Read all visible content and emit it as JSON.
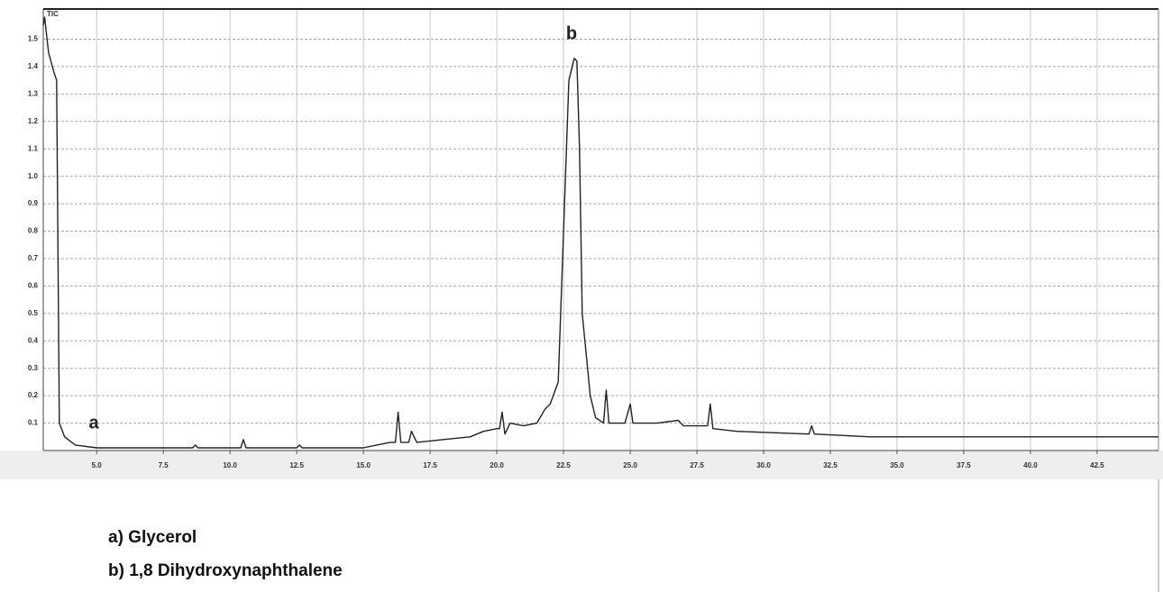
{
  "chart_data": {
    "type": "line",
    "y_label": "TIC",
    "color": "#222222",
    "grid": true,
    "xlim": [
      3.0,
      44.8
    ],
    "ylim": [
      0,
      1.61
    ],
    "xticks": [
      {
        "value": 5,
        "label": "5.0"
      },
      7.5,
      {
        "value": 10,
        "label": "10.0"
      },
      12.5,
      {
        "value": 15,
        "label": "15.0"
      },
      17.5,
      {
        "value": 20,
        "label": "20.0"
      },
      22.5,
      {
        "value": 25,
        "label": "25.0"
      },
      27.5,
      {
        "value": 30,
        "label": "30.0"
      },
      32.5,
      {
        "value": 35,
        "label": "35.0"
      },
      37.5,
      {
        "value": 40,
        "label": "40.0"
      },
      42.5
    ],
    "yticks": [
      0.1,
      0.2,
      0.3,
      0.4,
      0.5,
      0.6,
      0.7,
      0.8,
      0.9,
      {
        "value": 1,
        "label": "1.0"
      },
      1.1,
      1.2,
      1.3,
      1.4,
      1.5
    ],
    "x": [
      3.0,
      3.05,
      3.2,
      3.4,
      3.5,
      3.6,
      3.8,
      4.2,
      5.0,
      8.6,
      8.7,
      8.8,
      10.4,
      10.5,
      10.6,
      12.5,
      12.6,
      12.7,
      15.0,
      15.5,
      16.0,
      16.2,
      16.3,
      16.4,
      16.7,
      16.8,
      17.0,
      18.0,
      19.0,
      19.5,
      20.0,
      20.1,
      20.2,
      20.3,
      20.5,
      21.0,
      21.5,
      21.8,
      22.0,
      22.3,
      22.5,
      22.7,
      22.9,
      23.0,
      23.1,
      23.2,
      23.5,
      23.7,
      24.0,
      24.1,
      24.2,
      24.8,
      25.0,
      25.1,
      26.0,
      26.8,
      27.0,
      27.9,
      28.0,
      28.1,
      29.0,
      31.7,
      31.8,
      31.9,
      34.0,
      38.0,
      42.0,
      44.8
    ],
    "values": [
      1.55,
      1.58,
      1.45,
      1.38,
      1.35,
      0.1,
      0.05,
      0.02,
      0.01,
      0.01,
      0.02,
      0.01,
      0.01,
      0.04,
      0.01,
      0.01,
      0.02,
      0.01,
      0.01,
      0.02,
      0.03,
      0.03,
      0.14,
      0.03,
      0.03,
      0.07,
      0.03,
      0.04,
      0.05,
      0.07,
      0.08,
      0.08,
      0.14,
      0.06,
      0.1,
      0.09,
      0.1,
      0.15,
      0.17,
      0.25,
      0.8,
      1.35,
      1.43,
      1.42,
      1.1,
      0.5,
      0.2,
      0.12,
      0.1,
      0.22,
      0.1,
      0.1,
      0.17,
      0.1,
      0.1,
      0.11,
      0.09,
      0.09,
      0.17,
      0.08,
      0.07,
      0.06,
      0.09,
      0.06,
      0.05,
      0.05,
      0.05,
      0.05
    ],
    "annotations": [
      "a",
      "b"
    ],
    "notes": [
      "a) Glycerol",
      "b) 1,8 Dihydroxynaphthalene"
    ]
  }
}
